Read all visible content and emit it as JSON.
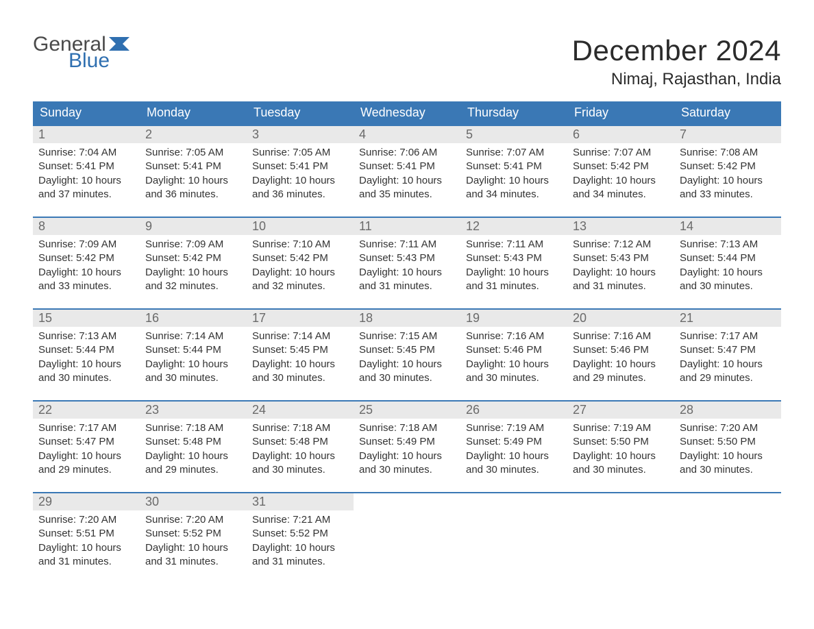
{
  "logo": {
    "text1": "General",
    "text2": "Blue",
    "flag_color": "#2f6fb0"
  },
  "title": "December 2024",
  "location": "Nimaj, Rajasthan, India",
  "colors": {
    "header_bg": "#3a78b5",
    "header_text": "#ffffff",
    "week_border": "#3a78b5",
    "daynum_bg": "#e9e9e9",
    "daynum_text": "#6a6a6a",
    "body_text": "#333333",
    "page_bg": "#ffffff"
  },
  "typography": {
    "title_fontsize": 42,
    "location_fontsize": 24,
    "dayheader_fontsize": 18,
    "daynum_fontsize": 18,
    "body_fontsize": 15
  },
  "day_labels": [
    "Sunday",
    "Monday",
    "Tuesday",
    "Wednesday",
    "Thursday",
    "Friday",
    "Saturday"
  ],
  "days": [
    {
      "n": "1",
      "sunrise": "Sunrise: 7:04 AM",
      "sunset": "Sunset: 5:41 PM",
      "daylight1": "Daylight: 10 hours",
      "daylight2": "and 37 minutes."
    },
    {
      "n": "2",
      "sunrise": "Sunrise: 7:05 AM",
      "sunset": "Sunset: 5:41 PM",
      "daylight1": "Daylight: 10 hours",
      "daylight2": "and 36 minutes."
    },
    {
      "n": "3",
      "sunrise": "Sunrise: 7:05 AM",
      "sunset": "Sunset: 5:41 PM",
      "daylight1": "Daylight: 10 hours",
      "daylight2": "and 36 minutes."
    },
    {
      "n": "4",
      "sunrise": "Sunrise: 7:06 AM",
      "sunset": "Sunset: 5:41 PM",
      "daylight1": "Daylight: 10 hours",
      "daylight2": "and 35 minutes."
    },
    {
      "n": "5",
      "sunrise": "Sunrise: 7:07 AM",
      "sunset": "Sunset: 5:41 PM",
      "daylight1": "Daylight: 10 hours",
      "daylight2": "and 34 minutes."
    },
    {
      "n": "6",
      "sunrise": "Sunrise: 7:07 AM",
      "sunset": "Sunset: 5:42 PM",
      "daylight1": "Daylight: 10 hours",
      "daylight2": "and 34 minutes."
    },
    {
      "n": "7",
      "sunrise": "Sunrise: 7:08 AM",
      "sunset": "Sunset: 5:42 PM",
      "daylight1": "Daylight: 10 hours",
      "daylight2": "and 33 minutes."
    },
    {
      "n": "8",
      "sunrise": "Sunrise: 7:09 AM",
      "sunset": "Sunset: 5:42 PM",
      "daylight1": "Daylight: 10 hours",
      "daylight2": "and 33 minutes."
    },
    {
      "n": "9",
      "sunrise": "Sunrise: 7:09 AM",
      "sunset": "Sunset: 5:42 PM",
      "daylight1": "Daylight: 10 hours",
      "daylight2": "and 32 minutes."
    },
    {
      "n": "10",
      "sunrise": "Sunrise: 7:10 AM",
      "sunset": "Sunset: 5:42 PM",
      "daylight1": "Daylight: 10 hours",
      "daylight2": "and 32 minutes."
    },
    {
      "n": "11",
      "sunrise": "Sunrise: 7:11 AM",
      "sunset": "Sunset: 5:43 PM",
      "daylight1": "Daylight: 10 hours",
      "daylight2": "and 31 minutes."
    },
    {
      "n": "12",
      "sunrise": "Sunrise: 7:11 AM",
      "sunset": "Sunset: 5:43 PM",
      "daylight1": "Daylight: 10 hours",
      "daylight2": "and 31 minutes."
    },
    {
      "n": "13",
      "sunrise": "Sunrise: 7:12 AM",
      "sunset": "Sunset: 5:43 PM",
      "daylight1": "Daylight: 10 hours",
      "daylight2": "and 31 minutes."
    },
    {
      "n": "14",
      "sunrise": "Sunrise: 7:13 AM",
      "sunset": "Sunset: 5:44 PM",
      "daylight1": "Daylight: 10 hours",
      "daylight2": "and 30 minutes."
    },
    {
      "n": "15",
      "sunrise": "Sunrise: 7:13 AM",
      "sunset": "Sunset: 5:44 PM",
      "daylight1": "Daylight: 10 hours",
      "daylight2": "and 30 minutes."
    },
    {
      "n": "16",
      "sunrise": "Sunrise: 7:14 AM",
      "sunset": "Sunset: 5:44 PM",
      "daylight1": "Daylight: 10 hours",
      "daylight2": "and 30 minutes."
    },
    {
      "n": "17",
      "sunrise": "Sunrise: 7:14 AM",
      "sunset": "Sunset: 5:45 PM",
      "daylight1": "Daylight: 10 hours",
      "daylight2": "and 30 minutes."
    },
    {
      "n": "18",
      "sunrise": "Sunrise: 7:15 AM",
      "sunset": "Sunset: 5:45 PM",
      "daylight1": "Daylight: 10 hours",
      "daylight2": "and 30 minutes."
    },
    {
      "n": "19",
      "sunrise": "Sunrise: 7:16 AM",
      "sunset": "Sunset: 5:46 PM",
      "daylight1": "Daylight: 10 hours",
      "daylight2": "and 30 minutes."
    },
    {
      "n": "20",
      "sunrise": "Sunrise: 7:16 AM",
      "sunset": "Sunset: 5:46 PM",
      "daylight1": "Daylight: 10 hours",
      "daylight2": "and 29 minutes."
    },
    {
      "n": "21",
      "sunrise": "Sunrise: 7:17 AM",
      "sunset": "Sunset: 5:47 PM",
      "daylight1": "Daylight: 10 hours",
      "daylight2": "and 29 minutes."
    },
    {
      "n": "22",
      "sunrise": "Sunrise: 7:17 AM",
      "sunset": "Sunset: 5:47 PM",
      "daylight1": "Daylight: 10 hours",
      "daylight2": "and 29 minutes."
    },
    {
      "n": "23",
      "sunrise": "Sunrise: 7:18 AM",
      "sunset": "Sunset: 5:48 PM",
      "daylight1": "Daylight: 10 hours",
      "daylight2": "and 29 minutes."
    },
    {
      "n": "24",
      "sunrise": "Sunrise: 7:18 AM",
      "sunset": "Sunset: 5:48 PM",
      "daylight1": "Daylight: 10 hours",
      "daylight2": "and 30 minutes."
    },
    {
      "n": "25",
      "sunrise": "Sunrise: 7:18 AM",
      "sunset": "Sunset: 5:49 PM",
      "daylight1": "Daylight: 10 hours",
      "daylight2": "and 30 minutes."
    },
    {
      "n": "26",
      "sunrise": "Sunrise: 7:19 AM",
      "sunset": "Sunset: 5:49 PM",
      "daylight1": "Daylight: 10 hours",
      "daylight2": "and 30 minutes."
    },
    {
      "n": "27",
      "sunrise": "Sunrise: 7:19 AM",
      "sunset": "Sunset: 5:50 PM",
      "daylight1": "Daylight: 10 hours",
      "daylight2": "and 30 minutes."
    },
    {
      "n": "28",
      "sunrise": "Sunrise: 7:20 AM",
      "sunset": "Sunset: 5:50 PM",
      "daylight1": "Daylight: 10 hours",
      "daylight2": "and 30 minutes."
    },
    {
      "n": "29",
      "sunrise": "Sunrise: 7:20 AM",
      "sunset": "Sunset: 5:51 PM",
      "daylight1": "Daylight: 10 hours",
      "daylight2": "and 31 minutes."
    },
    {
      "n": "30",
      "sunrise": "Sunrise: 7:20 AM",
      "sunset": "Sunset: 5:52 PM",
      "daylight1": "Daylight: 10 hours",
      "daylight2": "and 31 minutes."
    },
    {
      "n": "31",
      "sunrise": "Sunrise: 7:21 AM",
      "sunset": "Sunset: 5:52 PM",
      "daylight1": "Daylight: 10 hours",
      "daylight2": "and 31 minutes."
    }
  ],
  "layout": {
    "columns": 7,
    "weeks": 5,
    "first_day_column": 0,
    "trailing_empty": 4
  }
}
